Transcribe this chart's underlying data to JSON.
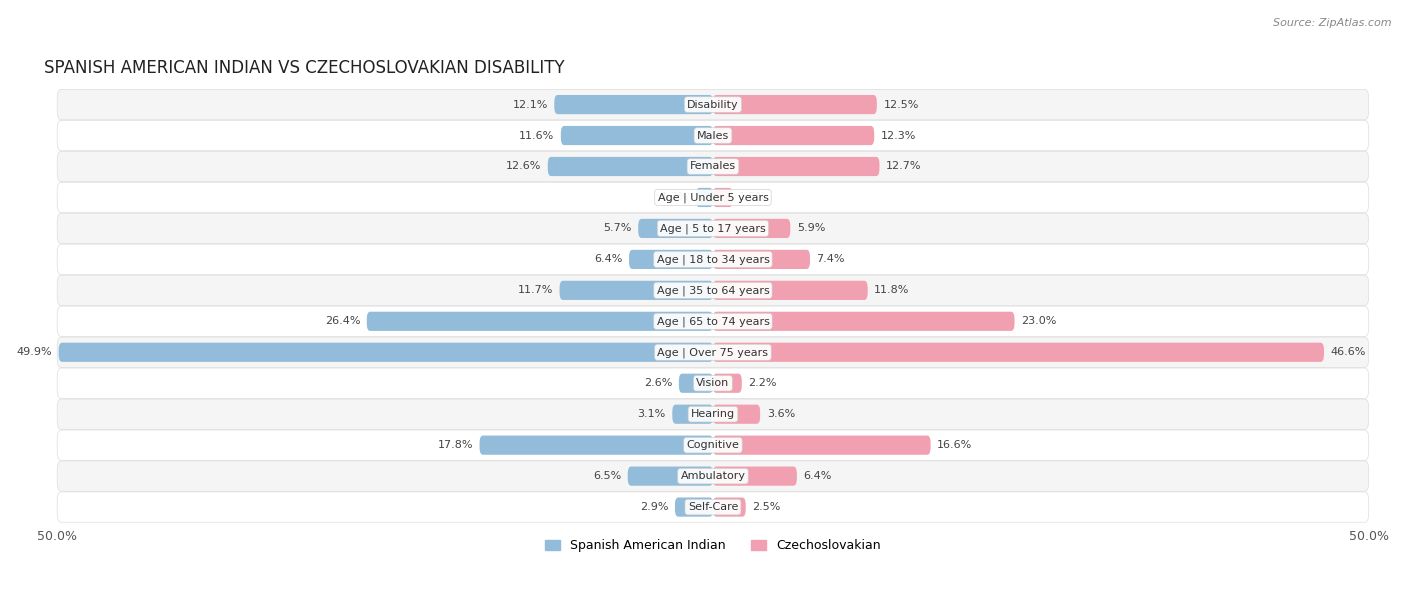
{
  "title": "SPANISH AMERICAN INDIAN VS CZECHOSLOVAKIAN DISABILITY",
  "source": "Source: ZipAtlas.com",
  "categories": [
    "Disability",
    "Males",
    "Females",
    "Age | Under 5 years",
    "Age | 5 to 17 years",
    "Age | 18 to 34 years",
    "Age | 35 to 64 years",
    "Age | 65 to 74 years",
    "Age | Over 75 years",
    "Vision",
    "Hearing",
    "Cognitive",
    "Ambulatory",
    "Self-Care"
  ],
  "left_values": [
    12.1,
    11.6,
    12.6,
    1.3,
    5.7,
    6.4,
    11.7,
    26.4,
    49.9,
    2.6,
    3.1,
    17.8,
    6.5,
    2.9
  ],
  "right_values": [
    12.5,
    12.3,
    12.7,
    1.5,
    5.9,
    7.4,
    11.8,
    23.0,
    46.6,
    2.2,
    3.6,
    16.6,
    6.4,
    2.5
  ],
  "left_color": "#92bcd9",
  "right_color": "#f0a0b0",
  "left_label": "Spanish American Indian",
  "right_label": "Czechoslovakian",
  "axis_max": 50.0,
  "bg_color": "#ffffff",
  "row_bg_odd": "#f5f5f5",
  "row_bg_even": "#ffffff",
  "title_fontsize": 12,
  "source_fontsize": 8,
  "tick_fontsize": 9,
  "value_fontsize": 8,
  "category_fontsize": 8
}
